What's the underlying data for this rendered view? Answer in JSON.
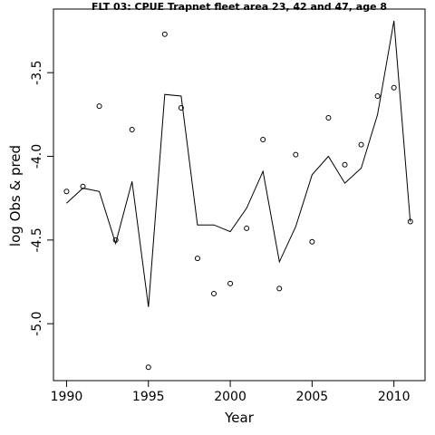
{
  "chart_data": {
    "type": "scatter",
    "title": "FLT 03: CPUE Trapnet fleet area 23, 42 and 47, age 8",
    "xlabel": "Year",
    "ylabel": "log Obs & pred",
    "xlim": [
      1989.2,
      2011.9
    ],
    "ylim": [
      -5.34,
      -3.12
    ],
    "x_ticks": [
      1990,
      1995,
      2000,
      2005,
      2010
    ],
    "y_ticks": [
      -3.5,
      -4.0,
      -4.5,
      -5.0
    ],
    "y_tick_labels": [
      "-3.5",
      "-4.0",
      "-4.5",
      "-5.0"
    ],
    "grid": false,
    "legend": "none",
    "series": [
      {
        "kind": "points",
        "x": [
          1990,
          1991,
          1992,
          1993,
          1994,
          1995,
          1996,
          1997,
          1998,
          1999,
          2000,
          2001,
          2002,
          2003,
          2004,
          2005,
          2006,
          2007,
          2008,
          2009,
          2010,
          2011
        ],
        "values": [
          -4.21,
          -4.18,
          -3.7,
          -4.5,
          -3.84,
          -5.26,
          -3.27,
          -3.71,
          -4.61,
          -4.82,
          -4.76,
          -4.43,
          -3.9,
          -4.79,
          -3.99,
          -4.51,
          -3.77,
          -4.05,
          -3.93,
          -3.64,
          -3.59,
          -4.39
        ]
      },
      {
        "kind": "line",
        "x": [
          1990,
          1991,
          1992,
          1993,
          1994,
          1995,
          1996,
          1997,
          1998,
          1999,
          2000,
          2001,
          2002,
          2003,
          2004,
          2005,
          2006,
          2007,
          2008,
          2009,
          2010,
          2011
        ],
        "values": [
          -4.28,
          -4.19,
          -4.21,
          -4.52,
          -4.15,
          -4.9,
          -3.63,
          -3.64,
          -4.41,
          -4.41,
          -4.45,
          -4.31,
          -4.09,
          -4.63,
          -4.42,
          -4.11,
          -4.0,
          -4.16,
          -4.07,
          -3.75,
          -3.19,
          -4.39
        ]
      }
    ],
    "colors": {
      "marks": "#000000",
      "background": "#ffffff"
    }
  }
}
